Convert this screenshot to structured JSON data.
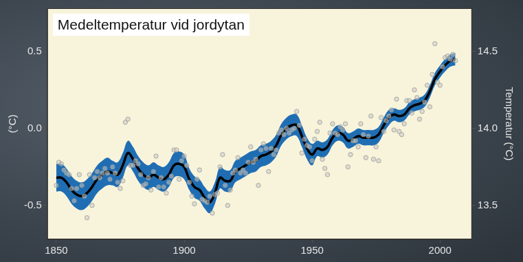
{
  "chart_data": {
    "type": "line",
    "title": "Medeltemperatur vid jordytan",
    "y_label": "(°C)",
    "y2_label": "Temperatur (°C)",
    "grid": false,
    "xlim": [
      1846.5,
      2012.5
    ],
    "xticks": [
      1850,
      1900,
      1950,
      2000
    ],
    "ylim": [
      -0.72,
      0.78
    ],
    "yticks": [
      -0.5,
      {
        "value": 0,
        "label": "0.0"
      },
      0.5
    ],
    "y2lim": [
      13.28,
      14.78
    ],
    "y2ticks": [
      13.5,
      {
        "value": 14,
        "label": "14.0"
      },
      14.5
    ],
    "series": [
      {
        "type": "band",
        "color": "#1f6eb4",
        "x": [
          1850,
          1852,
          1854,
          1856,
          1858,
          1860,
          1862,
          1864,
          1866,
          1868,
          1870,
          1872,
          1874,
          1876,
          1878,
          1880,
          1882,
          1884,
          1886,
          1888,
          1890,
          1892,
          1894,
          1896,
          1898,
          1900,
          1902,
          1904,
          1906,
          1908,
          1910,
          1912,
          1914,
          1916,
          1918,
          1920,
          1922,
          1924,
          1926,
          1928,
          1930,
          1932,
          1934,
          1936,
          1938,
          1940,
          1942,
          1944,
          1946,
          1948,
          1950,
          1952,
          1954,
          1956,
          1958,
          1960,
          1962,
          1964,
          1966,
          1968,
          1970,
          1972,
          1974,
          1976,
          1978,
          1980,
          1982,
          1984,
          1986,
          1988,
          1990,
          1992,
          1994,
          1996,
          1998,
          2000,
          2002,
          2004,
          2006
        ],
        "lower": [
          -0.41,
          -0.41,
          -0.44,
          -0.49,
          -0.52,
          -0.53,
          -0.51,
          -0.47,
          -0.42,
          -0.39,
          -0.37,
          -0.37,
          -0.38,
          -0.32,
          -0.24,
          -0.28,
          -0.34,
          -0.38,
          -0.4,
          -0.38,
          -0.4,
          -0.41,
          -0.38,
          -0.32,
          -0.31,
          -0.33,
          -0.4,
          -0.45,
          -0.47,
          -0.52,
          -0.55,
          -0.49,
          -0.39,
          -0.41,
          -0.41,
          -0.35,
          -0.33,
          -0.31,
          -0.29,
          -0.28,
          -0.25,
          -0.24,
          -0.22,
          -0.18,
          -0.11,
          -0.07,
          -0.05,
          -0.05,
          -0.12,
          -0.2,
          -0.24,
          -0.18,
          -0.19,
          -0.17,
          -0.11,
          -0.08,
          -0.09,
          -0.13,
          -0.12,
          -0.1,
          -0.11,
          -0.11,
          -0.11,
          -0.09,
          -0.03,
          0.02,
          0.05,
          0.04,
          0.05,
          0.09,
          0.11,
          0.12,
          0.14,
          0.2,
          0.28,
          0.33,
          0.37,
          0.4,
          0.41
        ],
        "upper": [
          -0.23,
          -0.23,
          -0.26,
          -0.31,
          -0.34,
          -0.35,
          -0.33,
          -0.29,
          -0.24,
          -0.21,
          -0.19,
          -0.21,
          -0.22,
          -0.16,
          -0.08,
          -0.12,
          -0.18,
          -0.22,
          -0.24,
          -0.22,
          -0.24,
          -0.25,
          -0.22,
          -0.16,
          -0.15,
          -0.17,
          -0.26,
          -0.31,
          -0.33,
          -0.38,
          -0.41,
          -0.35,
          -0.25,
          -0.27,
          -0.27,
          -0.21,
          -0.19,
          -0.17,
          -0.15,
          -0.14,
          -0.11,
          -0.1,
          -0.08,
          -0.04,
          0.03,
          0.07,
          0.09,
          0.09,
          0.02,
          -0.06,
          -0.1,
          -0.08,
          -0.09,
          -0.07,
          -0.01,
          0.02,
          0.01,
          -0.03,
          -0.02,
          0.0,
          -0.01,
          -0.01,
          -0.01,
          0.01,
          0.07,
          0.12,
          0.13,
          0.12,
          0.13,
          0.17,
          0.19,
          0.2,
          0.22,
          0.28,
          0.36,
          0.41,
          0.45,
          0.48,
          0.49
        ]
      },
      {
        "type": "line",
        "color": "#000000",
        "line_style": "solid",
        "x": [
          1850,
          1852,
          1854,
          1856,
          1858,
          1860,
          1862,
          1864,
          1866,
          1868,
          1870,
          1872,
          1874,
          1876,
          1878,
          1880,
          1882,
          1884,
          1886,
          1888,
          1890,
          1892,
          1894,
          1896,
          1898,
          1900,
          1902,
          1904,
          1906,
          1908,
          1910,
          1912,
          1914,
          1916,
          1918,
          1920,
          1922,
          1924,
          1926,
          1928,
          1930,
          1932,
          1934,
          1936,
          1938,
          1940,
          1942,
          1944,
          1946,
          1948,
          1950,
          1952,
          1954,
          1956,
          1958,
          1960,
          1962,
          1964,
          1966,
          1968,
          1970,
          1972,
          1974,
          1976,
          1978,
          1980,
          1982,
          1984,
          1986,
          1988,
          1990,
          1992,
          1994,
          1996,
          1998,
          2000,
          2002,
          2004,
          2006
        ],
        "values": [
          -0.32,
          -0.32,
          -0.35,
          -0.4,
          -0.43,
          -0.44,
          -0.42,
          -0.38,
          -0.33,
          -0.3,
          -0.28,
          -0.29,
          -0.3,
          -0.24,
          -0.16,
          -0.2,
          -0.26,
          -0.3,
          -0.32,
          -0.3,
          -0.32,
          -0.33,
          -0.3,
          -0.24,
          -0.23,
          -0.25,
          -0.33,
          -0.38,
          -0.4,
          -0.45,
          -0.48,
          -0.42,
          -0.32,
          -0.34,
          -0.34,
          -0.28,
          -0.26,
          -0.24,
          -0.22,
          -0.21,
          -0.18,
          -0.17,
          -0.15,
          -0.11,
          -0.04,
          0.0,
          0.02,
          0.02,
          -0.05,
          -0.13,
          -0.17,
          -0.13,
          -0.14,
          -0.12,
          -0.06,
          -0.03,
          -0.04,
          -0.08,
          -0.07,
          -0.05,
          -0.06,
          -0.06,
          -0.06,
          -0.04,
          0.02,
          0.07,
          0.09,
          0.08,
          0.09,
          0.13,
          0.15,
          0.16,
          0.18,
          0.24,
          0.32,
          0.37,
          0.41,
          0.44,
          0.45
        ]
      },
      {
        "type": "scatter",
        "color": "#c9c9c4",
        "marker": "circle",
        "x": [
          1850,
          1851,
          1852,
          1853,
          1854,
          1855,
          1856,
          1857,
          1858,
          1859,
          1860,
          1861,
          1862,
          1863,
          1864,
          1865,
          1866,
          1867,
          1868,
          1869,
          1870,
          1871,
          1872,
          1873,
          1874,
          1875,
          1876,
          1877,
          1878,
          1879,
          1880,
          1881,
          1882,
          1883,
          1884,
          1885,
          1886,
          1887,
          1888,
          1889,
          1890,
          1891,
          1892,
          1893,
          1894,
          1895,
          1896,
          1897,
          1898,
          1899,
          1900,
          1901,
          1902,
          1903,
          1904,
          1905,
          1906,
          1907,
          1908,
          1909,
          1910,
          1911,
          1912,
          1913,
          1914,
          1915,
          1916,
          1917,
          1918,
          1919,
          1920,
          1921,
          1922,
          1923,
          1924,
          1925,
          1926,
          1927,
          1928,
          1929,
          1930,
          1931,
          1932,
          1933,
          1934,
          1935,
          1936,
          1937,
          1938,
          1939,
          1940,
          1941,
          1942,
          1943,
          1944,
          1945,
          1946,
          1947,
          1948,
          1949,
          1950,
          1951,
          1952,
          1953,
          1954,
          1955,
          1956,
          1957,
          1958,
          1959,
          1960,
          1961,
          1962,
          1963,
          1964,
          1965,
          1966,
          1967,
          1968,
          1969,
          1970,
          1971,
          1972,
          1973,
          1974,
          1975,
          1976,
          1977,
          1978,
          1979,
          1980,
          1981,
          1982,
          1983,
          1984,
          1985,
          1986,
          1987,
          1988,
          1989,
          1990,
          1991,
          1992,
          1993,
          1994,
          1995,
          1996,
          1997,
          1998,
          1999,
          2000,
          2001,
          2002,
          2003,
          2004,
          2005,
          2006
        ],
        "values": [
          -0.37,
          -0.22,
          -0.23,
          -0.27,
          -0.29,
          -0.3,
          -0.39,
          -0.47,
          -0.39,
          -0.3,
          -0.37,
          -0.44,
          -0.58,
          -0.3,
          -0.5,
          -0.32,
          -0.28,
          -0.32,
          -0.29,
          -0.26,
          -0.29,
          -0.33,
          -0.25,
          -0.29,
          -0.35,
          -0.39,
          -0.34,
          0.04,
          0.06,
          -0.24,
          -0.24,
          -0.21,
          -0.23,
          -0.3,
          -0.37,
          -0.36,
          -0.32,
          -0.4,
          -0.28,
          -0.18,
          -0.38,
          -0.32,
          -0.38,
          -0.42,
          -0.35,
          -0.31,
          -0.14,
          -0.14,
          -0.33,
          -0.21,
          -0.18,
          -0.24,
          -0.35,
          -0.44,
          -0.49,
          -0.33,
          -0.27,
          -0.46,
          -0.47,
          -0.48,
          -0.44,
          -0.55,
          -0.43,
          -0.42,
          -0.25,
          -0.17,
          -0.37,
          -0.5,
          -0.4,
          -0.29,
          -0.27,
          -0.19,
          -0.29,
          -0.27,
          -0.29,
          -0.22,
          -0.12,
          -0.22,
          -0.2,
          -0.37,
          -0.14,
          -0.1,
          -0.13,
          -0.28,
          -0.13,
          -0.17,
          -0.14,
          -0.03,
          -0.01,
          -0.04,
          0.0,
          -0.03,
          -0.01,
          0.0,
          0.11,
          0.02,
          -0.16,
          -0.07,
          -0.11,
          -0.12,
          -0.21,
          -0.07,
          -0.02,
          0.04,
          -0.2,
          -0.26,
          -0.3,
          -0.03,
          0.03,
          -0.03,
          -0.04,
          0.01,
          -0.01,
          0.03,
          -0.25,
          -0.17,
          -0.08,
          -0.08,
          -0.12,
          0.03,
          -0.04,
          -0.19,
          -0.05,
          0.08,
          -0.2,
          -0.12,
          -0.21,
          0.07,
          -0.02,
          0.05,
          0.08,
          0.12,
          -0.01,
          0.19,
          -0.02,
          -0.04,
          0.03,
          0.18,
          0.18,
          0.1,
          0.25,
          0.2,
          0.06,
          0.11,
          0.17,
          0.28,
          0.14,
          0.35,
          0.55,
          0.3,
          0.28,
          0.4,
          0.46,
          0.47,
          0.45,
          0.48,
          0.44
        ]
      }
    ]
  }
}
